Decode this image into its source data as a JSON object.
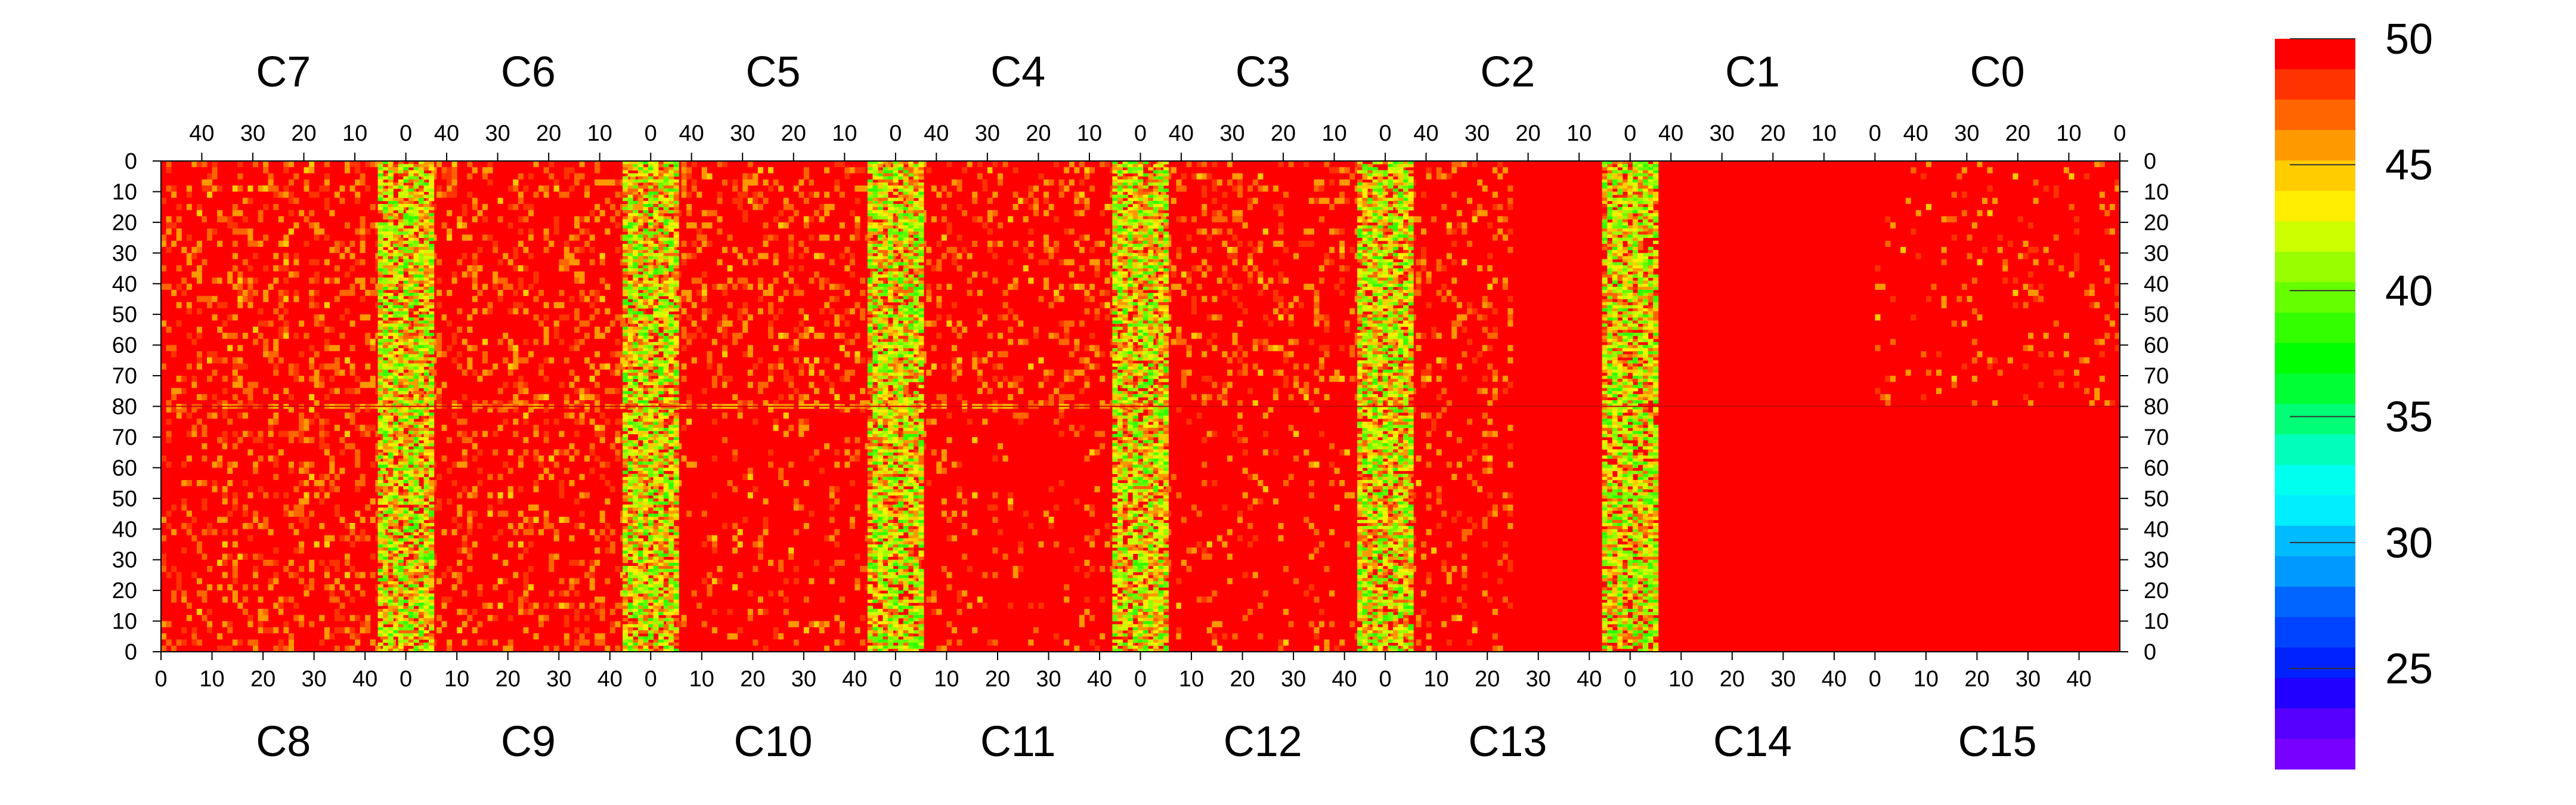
{
  "chart_data": {
    "type": "heatmap",
    "top_panel_labels": [
      "C7",
      "C6",
      "C5",
      "C4",
      "C3",
      "C2",
      "C1",
      "C0"
    ],
    "bottom_panel_labels": [
      "C8",
      "C9",
      "C10",
      "C11",
      "C12",
      "C13",
      "C14",
      "C15"
    ],
    "x_ticks_top": [
      "40",
      "30",
      "20",
      "10",
      "0"
    ],
    "x_ticks_bottom": [
      "0",
      "10",
      "20",
      "30",
      "40"
    ],
    "y_ticks_top_half": [
      "0",
      "10",
      "20",
      "30",
      "40",
      "50",
      "60",
      "70",
      "80"
    ],
    "y_ticks_bottom_half": [
      "70",
      "60",
      "50",
      "40",
      "30",
      "20",
      "10",
      "0"
    ],
    "x_range_per_panel": [
      0,
      48
    ],
    "y_range_per_half": [
      0,
      80
    ],
    "value_range": [
      21,
      50
    ],
    "colorbar_ticks": [
      "50",
      "45",
      "40",
      "35",
      "30",
      "25"
    ],
    "colorbar_tick_values": [
      50,
      45,
      40,
      35,
      30,
      25
    ],
    "colorbar_colors": [
      "#ff0000",
      "#ff3300",
      "#ff6600",
      "#ff9900",
      "#ffcc00",
      "#ffee00",
      "#ccff00",
      "#99ff00",
      "#66ff00",
      "#33ff00",
      "#00ff00",
      "#00ff33",
      "#00ff77",
      "#00ffbb",
      "#00ffee",
      "#00eeff",
      "#00bbff",
      "#0099ff",
      "#0066ff",
      "#0044ff",
      "#0022ff",
      "#2200ff",
      "#5500ff",
      "#7700ff"
    ],
    "background_color": "#ff0000",
    "hot_edge_columns": "x near 0 of C7/C8, C6/C9, C5/C10, C4/C11, C3/C12, C2/C13",
    "grid": false
  }
}
